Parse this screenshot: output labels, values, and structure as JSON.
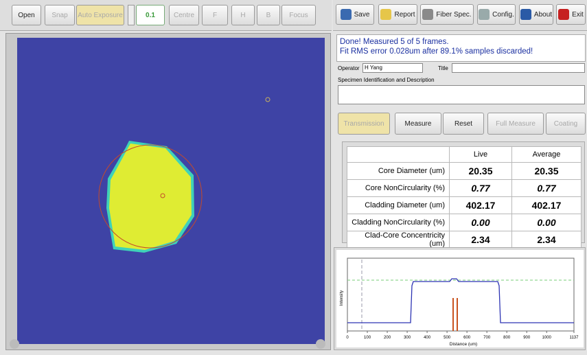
{
  "toolbar_left": [
    "Open",
    "Snap",
    "Auto Exposure",
    "0.1",
    "Centre",
    "F",
    "H",
    "B",
    "Focus"
  ],
  "toolbar_right": [
    "Save",
    "Report",
    "Fiber Spec.",
    "Config.",
    "About",
    "Exit"
  ],
  "status": [
    "Done! Measured 5 of 5 frames.",
    "Fit RMS error 0.028um after 89.1% samples discarded!"
  ],
  "form": {
    "operator_label": "Operator",
    "operator_value": "H Yang",
    "title_label": "Title",
    "specimen_label": "Specimen Identification and Description"
  },
  "tabs": [
    "Transmission",
    "Measure",
    "Reset",
    "Full Measure",
    "Coating"
  ],
  "table": {
    "columns": [
      "Live",
      "Average"
    ],
    "rows": [
      {
        "label": "Core Diameter (um)",
        "live": "20.35",
        "average": "20.35"
      },
      {
        "label": "Core NonCircularity (%)",
        "live": "0.77",
        "average": "0.77"
      },
      {
        "label": "Cladding Diameter (um)",
        "live": "402.17",
        "average": "402.17"
      },
      {
        "label": "Cladding NonCircularity (%)",
        "live": "0.00",
        "average": "0.00"
      },
      {
        "label": "Clad-Core Concentricity (um)",
        "live": "2.34",
        "average": "2.34"
      }
    ]
  },
  "profile": {
    "y_label": "Intensity",
    "x_label": "Distance (um)",
    "xtick_labels": [
      "0",
      "100",
      "200",
      "300",
      "400",
      "500",
      "600",
      "700",
      "800",
      "900",
      "1000",
      "1137"
    ]
  }
}
